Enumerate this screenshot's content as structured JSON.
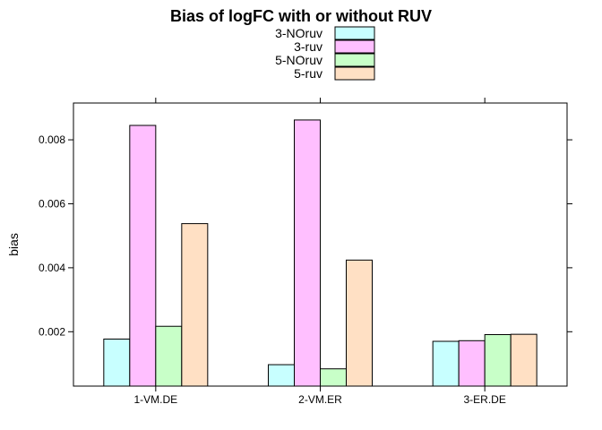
{
  "chart_data": {
    "type": "bar",
    "title": "Bias of logFC with or without RUV",
    "xlabel": "",
    "ylabel": "bias",
    "categories": [
      "1-VM.DE",
      "2-VM.ER",
      "3-ER.DE"
    ],
    "series": [
      {
        "name": "3-NOruv",
        "color": "#C8FFFF",
        "values": [
          0.00177,
          0.00097,
          0.0017
        ]
      },
      {
        "name": "3-ruv",
        "color": "#FFBFFF",
        "values": [
          0.00845,
          0.00862,
          0.00172
        ]
      },
      {
        "name": "5-NOruv",
        "color": "#C8FFC8",
        "values": [
          0.00217,
          0.00084,
          0.00191
        ]
      },
      {
        "name": "5-ruv",
        "color": "#FFE0C4",
        "values": [
          0.00538,
          0.00424,
          0.00192
        ]
      }
    ],
    "ylim": [
      0.0003,
      0.00915
    ],
    "yticks": [
      0.002,
      0.004,
      0.006,
      0.008
    ],
    "ytick_labels": [
      "0.002",
      "0.004",
      "0.006",
      "0.008"
    ],
    "grid": false,
    "legend_position": "top"
  }
}
